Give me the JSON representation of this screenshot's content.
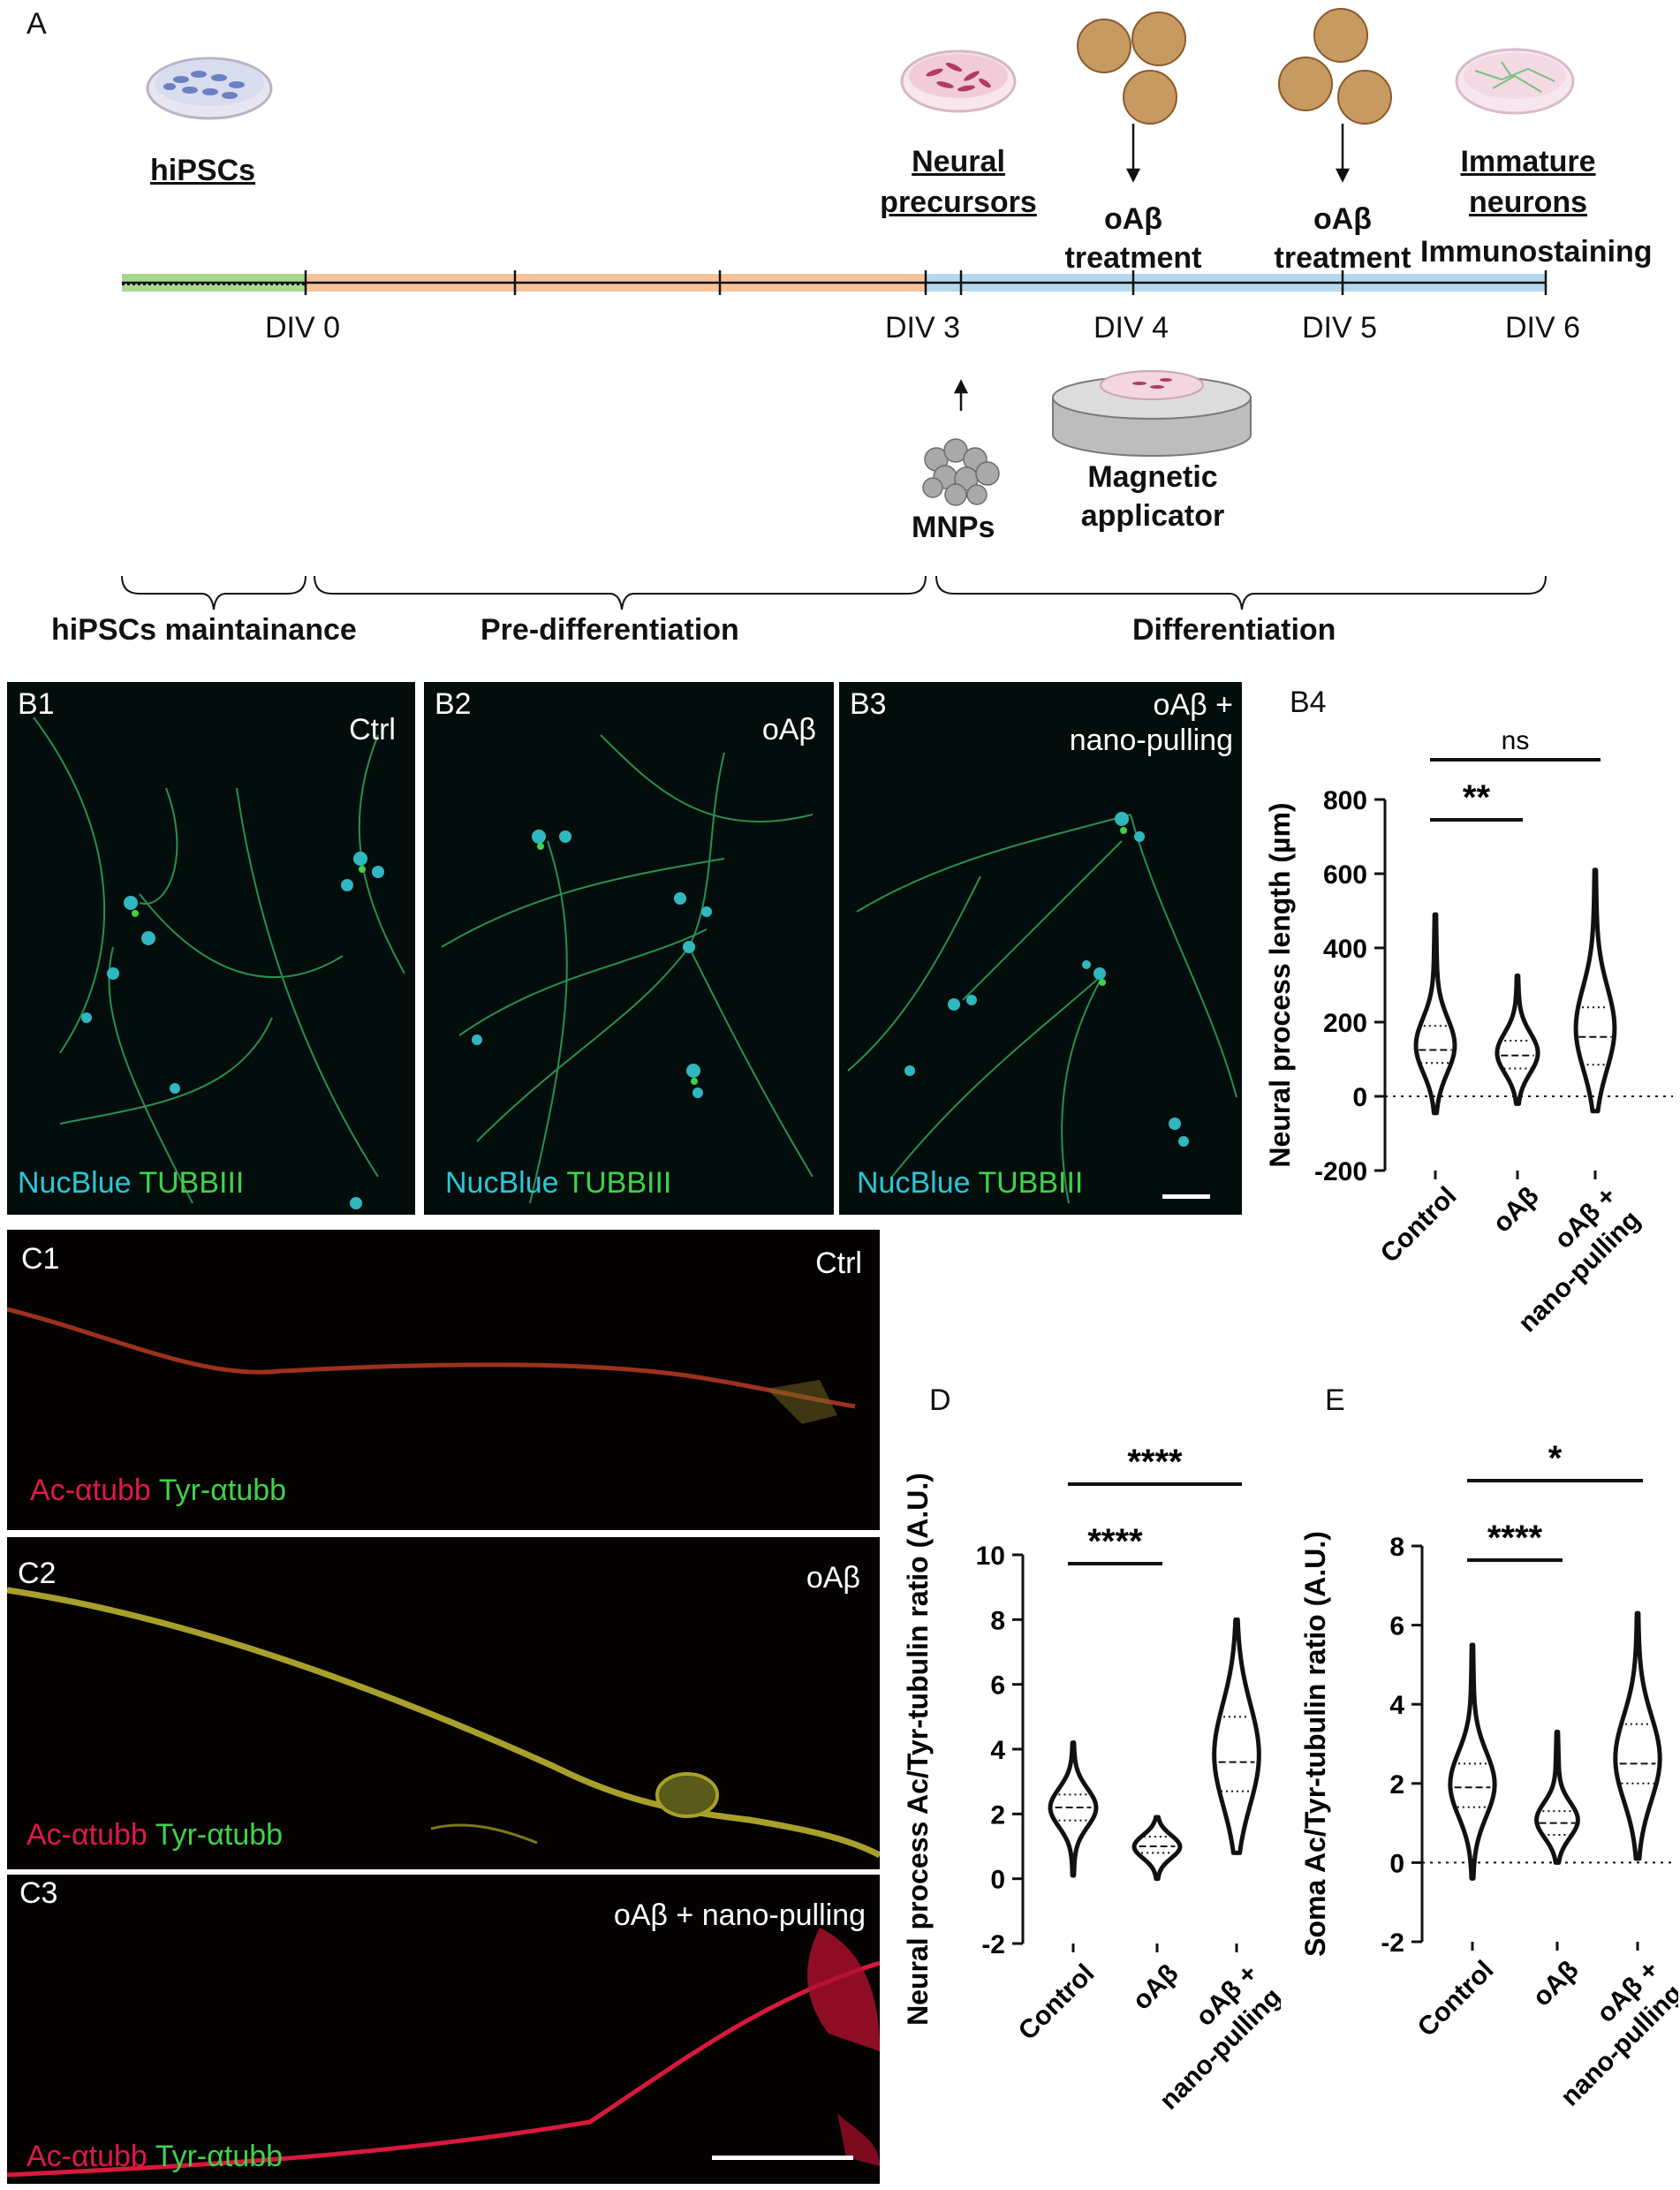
{
  "panels": {
    "A": "A",
    "B1": "B1",
    "B2": "B2",
    "B3": "B3",
    "B4": "B4",
    "C1": "C1",
    "C2": "C2",
    "C3": "C3",
    "D": "D",
    "E": "E"
  },
  "timeline": {
    "stages": {
      "hipscs": "hiPSCs",
      "precursors_1": "Neural",
      "precursors_2": "precursors",
      "immature_1": "Immature",
      "immature_2": "neurons",
      "immunostaining": "Immunostaining",
      "oab4_1": "oAβ",
      "oab4_2": "treatment",
      "oab5_1": "oAβ",
      "oab5_2": "treatment",
      "mnps": "MNPs",
      "applicator_1": "Magnetic",
      "applicator_2": "applicator"
    },
    "days": [
      "DIV 0",
      "DIV 3",
      "DIV 4",
      "DIV 5",
      "DIV 6"
    ],
    "phases": [
      "hiPSCs maintainance",
      "Pre-differentiation",
      "Differentiation"
    ],
    "colors": {
      "maintenance": "#a8d890",
      "predifferentiation": "#f5c29a",
      "differentiation": "#b6d8ee"
    }
  },
  "microscopy_b": {
    "conditions": [
      "Ctrl",
      "oAβ",
      "oAβ +",
      "nano-pulling"
    ],
    "stain_blue": "NucBlue",
    "stain_green": "TUBBIII"
  },
  "microscopy_c": {
    "conditions": [
      "Ctrl",
      "oAβ",
      "oAβ + nano-pulling"
    ],
    "stain_red": "Ac-αtubb",
    "stain_green": "Tyr-αtubb"
  },
  "chart_data": [
    {
      "id": "B4",
      "type": "violin",
      "ylabel": "Neural process length (µm)",
      "yticks": [
        -200,
        0,
        200,
        400,
        600,
        800
      ],
      "ylim": [
        -200,
        800
      ],
      "categories": [
        "Control",
        "oAβ",
        "oAβ + nano-pulling"
      ],
      "category_lines": [
        [
          "Control"
        ],
        [
          "oAβ"
        ],
        [
          "oAβ +",
          "nano-pulling"
        ]
      ],
      "medians": [
        125,
        110,
        160
      ],
      "quartiles": [
        [
          90,
          190
        ],
        [
          75,
          150
        ],
        [
          85,
          240
        ]
      ],
      "ranges": [
        [
          -45,
          490
        ],
        [
          -20,
          325
        ],
        [
          -40,
          610
        ]
      ],
      "significance": [
        {
          "from": 0,
          "to": 1,
          "label": "**"
        },
        {
          "from": 0,
          "to": 2,
          "label": "ns"
        }
      ],
      "zero_line": "dotted"
    },
    {
      "id": "D",
      "type": "violin",
      "ylabel": "Neural process Ac/Tyr-tubulin ratio (A.U.)",
      "yticks": [
        -2,
        0,
        2,
        4,
        6,
        8,
        10
      ],
      "ylim": [
        -2,
        10
      ],
      "categories": [
        "Control",
        "oAβ",
        "oAβ + nano-pulling"
      ],
      "category_lines": [
        [
          "Control"
        ],
        [
          "oAβ"
        ],
        [
          "oAβ +",
          "nano-pulling"
        ]
      ],
      "medians": [
        2.2,
        1.0,
        3.6
      ],
      "quartiles": [
        [
          1.8,
          2.6
        ],
        [
          0.8,
          1.3
        ],
        [
          2.7,
          5.0
        ]
      ],
      "ranges": [
        [
          0.1,
          4.2
        ],
        [
          0.0,
          1.9
        ],
        [
          0.8,
          8.0
        ]
      ],
      "significance": [
        {
          "from": 0,
          "to": 1,
          "label": "****"
        },
        {
          "from": 0,
          "to": 2,
          "label": "****"
        }
      ]
    },
    {
      "id": "E",
      "type": "violin",
      "ylabel": "Soma Ac/Tyr-tubulin ratio (A.U.)",
      "yticks": [
        -2,
        0,
        2,
        4,
        6,
        8
      ],
      "ylim": [
        -2,
        8
      ],
      "categories": [
        "Control",
        "oAβ",
        "oAβ + nano-pulling"
      ],
      "category_lines": [
        [
          "Control"
        ],
        [
          "oAβ"
        ],
        [
          "oAβ +",
          "nano-pulling"
        ]
      ],
      "medians": [
        1.9,
        1.0,
        2.5
      ],
      "quartiles": [
        [
          1.4,
          2.5
        ],
        [
          0.7,
          1.3
        ],
        [
          2.0,
          3.5
        ]
      ],
      "ranges": [
        [
          -0.4,
          5.5
        ],
        [
          0.0,
          3.3
        ],
        [
          0.1,
          6.3
        ]
      ],
      "significance": [
        {
          "from": 0,
          "to": 1,
          "label": "****"
        },
        {
          "from": 0,
          "to": 2,
          "label": "*"
        }
      ],
      "zero_line": "dotted"
    }
  ]
}
